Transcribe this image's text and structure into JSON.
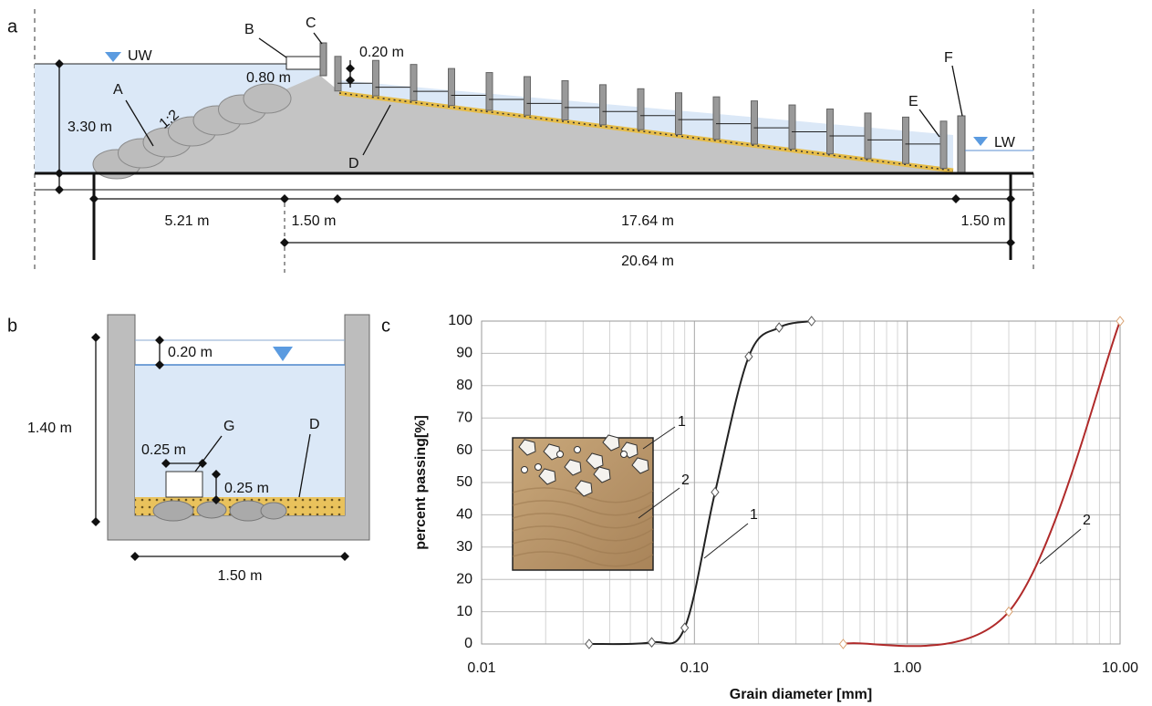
{
  "panel_a": {
    "panel_label": "a",
    "labels": {
      "upstream": "UW",
      "downstream": "LW",
      "a": "A",
      "b": "B",
      "c": "C",
      "d": "D",
      "e": "E",
      "f": "F",
      "slope": "1:2"
    },
    "dimensions": {
      "depth": "3.30 m",
      "box": "0.80 m",
      "drop": "0.20 m",
      "toe": "5.21 m",
      "crest": "1.50 m",
      "ramp": "17.64 m",
      "end": "1.50 m",
      "total": "20.64 m"
    }
  },
  "panel_b": {
    "panel_label": "b",
    "labels": {
      "g": "G",
      "d": "D"
    },
    "dimensions": {
      "freeboard": "0.20 m",
      "height": "1.40 m",
      "g_width": "0.25 m",
      "g_height": "0.25 m",
      "width": "1.50 m"
    }
  },
  "panel_c": {
    "panel_label": "c"
  },
  "chart_data": {
    "type": "line",
    "xlabel": "Grain diameter [mm]",
    "ylabel": "percent passing[%]",
    "log_x": true,
    "grid": true,
    "xlim": [
      0.01,
      10
    ],
    "ylim": [
      0,
      100
    ],
    "xticks": [
      {
        "value": 0.01,
        "label": "0.01"
      },
      {
        "value": 0.1,
        "label": "0.10"
      },
      {
        "value": 1,
        "label": "1.00"
      },
      {
        "value": 10,
        "label": "10.00"
      }
    ],
    "yticks": [
      0,
      10,
      20,
      30,
      40,
      50,
      60,
      70,
      80,
      90,
      100
    ],
    "series": [
      {
        "name": "1",
        "color": "#222222",
        "x": [
          0.032,
          0.063,
          0.09,
          0.125,
          0.18,
          0.25,
          0.355
        ],
        "values": [
          0,
          0.5,
          5,
          47,
          89,
          98,
          100
        ]
      },
      {
        "name": "2",
        "color": "#b02a2a",
        "x": [
          0.5,
          3,
          10
        ],
        "values": [
          0,
          10,
          100
        ]
      }
    ]
  }
}
